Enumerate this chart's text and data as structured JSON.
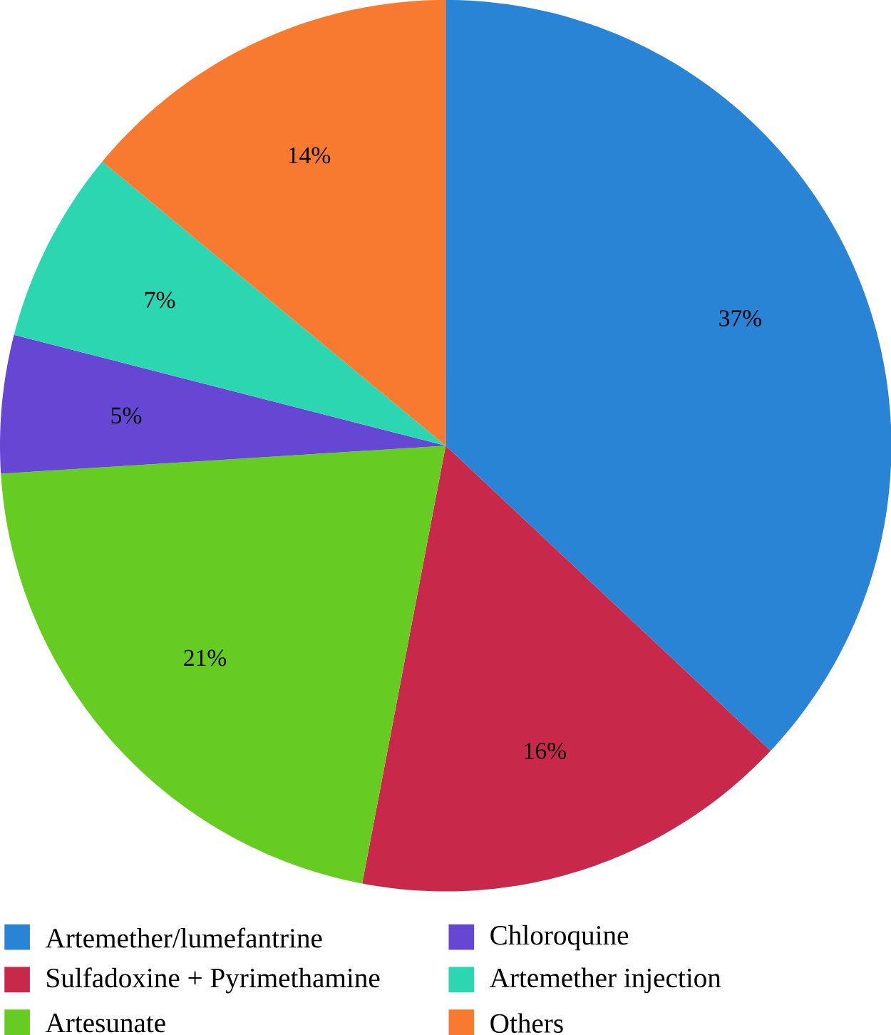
{
  "chart_data": {
    "type": "pie",
    "categories": [
      "Artemether/lumefantrine",
      "Sulfadoxine + Pyrimethamine",
      "Artesunate",
      "Chloroquine",
      "Artemether injection",
      "Others"
    ],
    "values": [
      37,
      16,
      21,
      5,
      7,
      14
    ],
    "value_labels": [
      "37%",
      "16%",
      "21%",
      "5%",
      "7%",
      "14%"
    ],
    "colors": [
      "#2a84d6",
      "#c8294a",
      "#66cc22",
      "#6547d4",
      "#2bd6b0",
      "#f87a30"
    ],
    "legend": "bottom"
  }
}
